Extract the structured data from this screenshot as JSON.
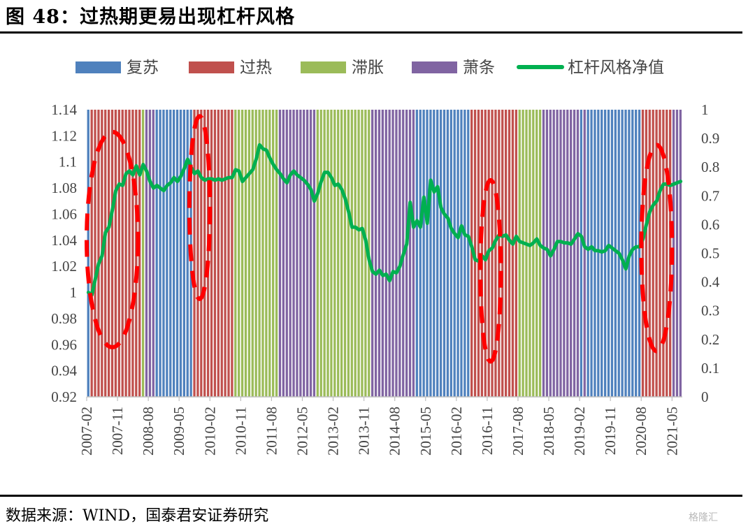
{
  "title": "图 48：过热期更易出现杠杆风格",
  "source": "数据来源：WIND，国泰君安证券研究",
  "watermark": "格隆汇",
  "colors": {
    "复苏": "#4f81bd",
    "过热": "#c0504d",
    "滞胀": "#9bbb59",
    "萧条": "#8064a2",
    "line": "#00b050",
    "ellipse": "#ff0000"
  },
  "chart_data": {
    "type": "line",
    "legend": [
      {
        "name": "复苏",
        "kind": "bar"
      },
      {
        "name": "过热",
        "kind": "bar"
      },
      {
        "name": "滞胀",
        "kind": "bar"
      },
      {
        "name": "萧条",
        "kind": "bar"
      },
      {
        "name": "杠杆风格净值",
        "kind": "line"
      }
    ],
    "legend_position": "top",
    "y_left": {
      "min": 0.92,
      "max": 1.14,
      "ticks": [
        "0.92",
        "0.94",
        "0.96",
        "0.98",
        "1",
        "1.02",
        "1.04",
        "1.06",
        "1.08",
        "1.1",
        "1.12",
        "1.14"
      ]
    },
    "y_right": {
      "min": 0,
      "max": 1,
      "ticks": [
        "0",
        "0.1",
        "0.2",
        "0.3",
        "0.4",
        "0.5",
        "0.6",
        "0.7",
        "0.8",
        "0.9",
        "1"
      ]
    },
    "x_ticks": [
      "2007-02",
      "2007-11",
      "2008-08",
      "2009-05",
      "2010-02",
      "2010-11",
      "2011-08",
      "2012-05",
      "2013-02",
      "2013-11",
      "2014-08",
      "2015-05",
      "2016-02",
      "2016-11",
      "2017-08",
      "2018-05",
      "2019-02",
      "2019-11",
      "2020-08",
      "2021-05"
    ],
    "x_range": [
      "2007-02",
      "2021-07"
    ],
    "phases": [
      {
        "phase": "复苏",
        "start": "2007-02",
        "end": "2007-02"
      },
      {
        "phase": "过热",
        "start": "2007-03",
        "end": "2008-05"
      },
      {
        "phase": "滞胀",
        "start": "2008-06",
        "end": "2008-06"
      },
      {
        "phase": "萧条",
        "start": "2008-07",
        "end": "2008-09"
      },
      {
        "phase": "复苏",
        "start": "2008-10",
        "end": "2009-08"
      },
      {
        "phase": "过热",
        "start": "2009-09",
        "end": "2010-08"
      },
      {
        "phase": "滞胀",
        "start": "2010-09",
        "end": "2011-09"
      },
      {
        "phase": "萧条",
        "start": "2011-10",
        "end": "2012-08"
      },
      {
        "phase": "滞胀",
        "start": "2012-09",
        "end": "2013-12"
      },
      {
        "phase": "萧条",
        "start": "2014-01",
        "end": "2015-01"
      },
      {
        "phase": "复苏",
        "start": "2015-02",
        "end": "2016-05"
      },
      {
        "phase": "过热",
        "start": "2016-06",
        "end": "2017-07"
      },
      {
        "phase": "滞胀",
        "start": "2017-08",
        "end": "2018-02"
      },
      {
        "phase": "萧条",
        "start": "2018-03",
        "end": "2019-01"
      },
      {
        "phase": "复苏",
        "start": "2019-02",
        "end": "2019-02"
      },
      {
        "phase": "萧条",
        "start": "2019-03",
        "end": "2019-03"
      },
      {
        "phase": "复苏",
        "start": "2019-04",
        "end": "2020-07"
      },
      {
        "phase": "过热",
        "start": "2020-08",
        "end": "2021-04"
      },
      {
        "phase": "萧条",
        "start": "2021-05",
        "end": "2021-07"
      }
    ],
    "series": [
      {
        "name": "杠杆风格净值",
        "axis": "left",
        "points": [
          [
            "2007-02",
            1.0
          ],
          [
            "2007-03",
            0.998
          ],
          [
            "2007-04",
            1.01
          ],
          [
            "2007-05",
            1.022
          ],
          [
            "2007-06",
            1.028
          ],
          [
            "2007-07",
            1.046
          ],
          [
            "2007-08",
            1.05
          ],
          [
            "2007-09",
            1.063
          ],
          [
            "2007-10",
            1.078
          ],
          [
            "2007-11",
            1.083
          ],
          [
            "2007-12",
            1.082
          ],
          [
            "2008-01",
            1.091
          ],
          [
            "2008-02",
            1.093
          ],
          [
            "2008-03",
            1.09
          ],
          [
            "2008-04",
            1.097
          ],
          [
            "2008-05",
            1.09
          ],
          [
            "2008-06",
            1.098
          ],
          [
            "2008-07",
            1.093
          ],
          [
            "2008-08",
            1.085
          ],
          [
            "2008-09",
            1.08
          ],
          [
            "2008-10",
            1.082
          ],
          [
            "2008-11",
            1.08
          ],
          [
            "2008-12",
            1.078
          ],
          [
            "2009-01",
            1.082
          ],
          [
            "2009-02",
            1.084
          ],
          [
            "2009-03",
            1.088
          ],
          [
            "2009-04",
            1.085
          ],
          [
            "2009-05",
            1.089
          ],
          [
            "2009-06",
            1.095
          ],
          [
            "2009-07",
            1.102
          ],
          [
            "2009-08",
            1.096
          ],
          [
            "2009-09",
            1.091
          ],
          [
            "2009-10",
            1.093
          ],
          [
            "2009-11",
            1.088
          ],
          [
            "2009-12",
            1.086
          ],
          [
            "2010-01",
            1.087
          ],
          [
            "2010-02",
            1.087
          ],
          [
            "2010-03",
            1.086
          ],
          [
            "2010-04",
            1.087
          ],
          [
            "2010-05",
            1.086
          ],
          [
            "2010-06",
            1.087
          ],
          [
            "2010-07",
            1.088
          ],
          [
            "2010-08",
            1.088
          ],
          [
            "2010-09",
            1.094
          ],
          [
            "2010-10",
            1.093
          ],
          [
            "2010-11",
            1.085
          ],
          [
            "2010-12",
            1.088
          ],
          [
            "2011-01",
            1.091
          ],
          [
            "2011-02",
            1.094
          ],
          [
            "2011-03",
            1.102
          ],
          [
            "2011-04",
            1.113
          ],
          [
            "2011-05",
            1.11
          ],
          [
            "2011-06",
            1.109
          ],
          [
            "2011-07",
            1.103
          ],
          [
            "2011-08",
            1.098
          ],
          [
            "2011-09",
            1.094
          ],
          [
            "2011-10",
            1.091
          ],
          [
            "2011-11",
            1.087
          ],
          [
            "2011-12",
            1.084
          ],
          [
            "2012-01",
            1.09
          ],
          [
            "2012-02",
            1.093
          ],
          [
            "2012-03",
            1.09
          ],
          [
            "2012-04",
            1.088
          ],
          [
            "2012-05",
            1.086
          ],
          [
            "2012-06",
            1.083
          ],
          [
            "2012-07",
            1.079
          ],
          [
            "2012-08",
            1.07
          ],
          [
            "2012-09",
            1.076
          ],
          [
            "2012-10",
            1.085
          ],
          [
            "2012-11",
            1.092
          ],
          [
            "2012-12",
            1.092
          ],
          [
            "2013-01",
            1.088
          ],
          [
            "2013-02",
            1.082
          ],
          [
            "2013-03",
            1.083
          ],
          [
            "2013-04",
            1.079
          ],
          [
            "2013-05",
            1.072
          ],
          [
            "2013-06",
            1.062
          ],
          [
            "2013-07",
            1.05
          ],
          [
            "2013-08",
            1.05
          ],
          [
            "2013-09",
            1.048
          ],
          [
            "2013-10",
            1.049
          ],
          [
            "2013-11",
            1.04
          ],
          [
            "2013-12",
            1.025
          ],
          [
            "2014-01",
            1.016
          ],
          [
            "2014-02",
            1.014
          ],
          [
            "2014-03",
            1.017
          ],
          [
            "2014-04",
            1.013
          ],
          [
            "2014-05",
            1.014
          ],
          [
            "2014-06",
            1.009
          ],
          [
            "2014-07",
            1.016
          ],
          [
            "2014-08",
            1.015
          ],
          [
            "2014-09",
            1.02
          ],
          [
            "2014-10",
            1.029
          ],
          [
            "2014-11",
            1.037
          ],
          [
            "2014-12",
            1.069
          ],
          [
            "2015-01",
            1.05
          ],
          [
            "2015-02",
            1.055
          ],
          [
            "2015-03",
            1.05
          ],
          [
            "2015-04",
            1.073
          ],
          [
            "2015-05",
            1.053
          ],
          [
            "2015-06",
            1.086
          ],
          [
            "2015-07",
            1.077
          ],
          [
            "2015-08",
            1.081
          ],
          [
            "2015-09",
            1.065
          ],
          [
            "2015-10",
            1.06
          ],
          [
            "2015-11",
            1.057
          ],
          [
            "2015-12",
            1.049
          ],
          [
            "2016-01",
            1.045
          ],
          [
            "2016-02",
            1.042
          ],
          [
            "2016-03",
            1.051
          ],
          [
            "2016-04",
            1.044
          ],
          [
            "2016-05",
            1.043
          ],
          [
            "2016-06",
            1.035
          ],
          [
            "2016-07",
            1.025
          ],
          [
            "2016-08",
            1.024
          ],
          [
            "2016-09",
            1.028
          ],
          [
            "2016-10",
            1.025
          ],
          [
            "2016-11",
            1.032
          ],
          [
            "2016-12",
            1.034
          ],
          [
            "2017-01",
            1.04
          ],
          [
            "2017-02",
            1.044
          ],
          [
            "2017-03",
            1.043
          ],
          [
            "2017-04",
            1.044
          ],
          [
            "2017-05",
            1.04
          ],
          [
            "2017-06",
            1.037
          ],
          [
            "2017-07",
            1.043
          ],
          [
            "2017-08",
            1.039
          ],
          [
            "2017-09",
            1.038
          ],
          [
            "2017-10",
            1.037
          ],
          [
            "2017-11",
            1.036
          ],
          [
            "2017-12",
            1.038
          ],
          [
            "2018-01",
            1.041
          ],
          [
            "2018-02",
            1.036
          ],
          [
            "2018-03",
            1.034
          ],
          [
            "2018-04",
            1.033
          ],
          [
            "2018-05",
            1.028
          ],
          [
            "2018-06",
            1.033
          ],
          [
            "2018-07",
            1.039
          ],
          [
            "2018-08",
            1.039
          ],
          [
            "2018-09",
            1.038
          ],
          [
            "2018-10",
            1.038
          ],
          [
            "2018-11",
            1.037
          ],
          [
            "2018-12",
            1.041
          ],
          [
            "2019-01",
            1.045
          ],
          [
            "2019-02",
            1.043
          ],
          [
            "2019-03",
            1.035
          ],
          [
            "2019-04",
            1.033
          ],
          [
            "2019-05",
            1.035
          ],
          [
            "2019-06",
            1.032
          ],
          [
            "2019-07",
            1.032
          ],
          [
            "2019-08",
            1.031
          ],
          [
            "2019-09",
            1.032
          ],
          [
            "2019-10",
            1.036
          ],
          [
            "2019-11",
            1.034
          ],
          [
            "2019-12",
            1.032
          ],
          [
            "2020-01",
            1.03
          ],
          [
            "2020-02",
            1.025
          ],
          [
            "2020-03",
            1.018
          ],
          [
            "2020-04",
            1.028
          ],
          [
            "2020-05",
            1.033
          ],
          [
            "2020-06",
            1.035
          ],
          [
            "2020-07",
            1.035
          ],
          [
            "2020-08",
            1.041
          ],
          [
            "2020-09",
            1.052
          ],
          [
            "2020-10",
            1.062
          ],
          [
            "2020-11",
            1.067
          ],
          [
            "2020-12",
            1.07
          ],
          [
            "2021-01",
            1.078
          ],
          [
            "2021-02",
            1.083
          ],
          [
            "2021-03",
            1.083
          ],
          [
            "2021-04",
            1.082
          ],
          [
            "2021-05",
            1.083
          ],
          [
            "2021-06",
            1.084
          ],
          [
            "2021-07",
            1.085
          ]
        ]
      }
    ],
    "highlights": [
      {
        "start": "2007-02",
        "end": "2008-04",
        "y_top": 1.123,
        "y_bottom": 0.958
      },
      {
        "start": "2009-08",
        "end": "2010-01",
        "y_top": 1.135,
        "y_bottom": 0.995
      },
      {
        "start": "2016-09",
        "end": "2017-02",
        "y_top": 1.086,
        "y_bottom": 0.947
      },
      {
        "start": "2020-08",
        "end": "2021-04",
        "y_top": 1.113,
        "y_bottom": 0.955
      }
    ]
  }
}
